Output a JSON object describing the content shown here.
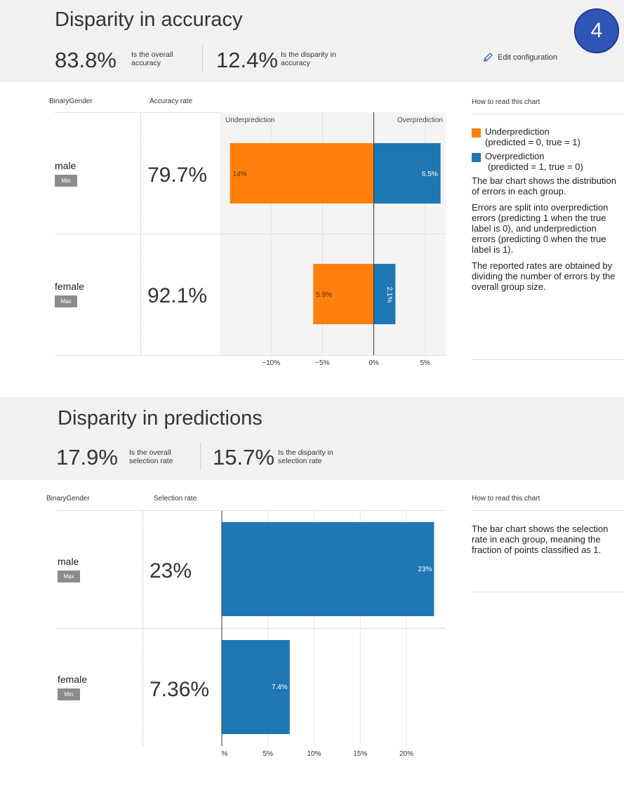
{
  "accuracy_section": {
    "title": "Disparity in accuracy",
    "overall_value": "83.8%",
    "overall_label": "Is the overall accuracy",
    "disparity_value": "12.4%",
    "disparity_label": "Is the disparity in accuracy",
    "edit_label": "Edit configuration",
    "step_badge": "4",
    "col_group": "BinaryGender",
    "col_metric": "Accuracy rate",
    "rows": [
      {
        "name": "male",
        "tag": "Min",
        "rate": "79.7%"
      },
      {
        "name": "female",
        "tag": "Max",
        "rate": "92.1%"
      }
    ],
    "howto_title": "How to read this chart",
    "legend": [
      {
        "label": "Underprediction",
        "detail": "(predicted = 0, true = 1)",
        "color": "#ff7f0e"
      },
      {
        "label": "Overprediction",
        "detail": "(predicted = 1, true = 0)",
        "color": "#1f77b4"
      }
    ],
    "paragraphs": [
      "The bar chart shows the distribution of errors in each group.",
      "Errors are split into overprediction errors (predicting 1 when the true label is 0), and underprediction errors (predicting 0 when the true label is 1).",
      "The reported rates are obtained by dividing the number of errors by the overall group size."
    ]
  },
  "predictions_section": {
    "title": "Disparity in predictions",
    "overall_value": "17.9%",
    "overall_label": "Is the overall selection rate",
    "disparity_value": "15.7%",
    "disparity_label": "Is the disparity in selection rate",
    "col_group": "BinaryGender",
    "col_metric": "Selection rate",
    "rows": [
      {
        "name": "male",
        "tag": "Max",
        "rate": "23%"
      },
      {
        "name": "female",
        "tag": "Min",
        "rate": "7.36%"
      }
    ],
    "howto_title": "How to read this chart",
    "paragraphs": [
      "The bar chart shows the selection rate in each group, meaning the fraction of points classified as 1."
    ]
  },
  "chart_data": [
    {
      "type": "bar",
      "orientation": "horizontal",
      "stacked": "diverging",
      "categories": [
        "male",
        "female"
      ],
      "series": [
        {
          "name": "Underprediction",
          "values": [
            -14,
            -5.9
          ],
          "labels": [
            "14%",
            "5.9%"
          ],
          "color": "#ff7f0e"
        },
        {
          "name": "Overprediction",
          "values": [
            6.5,
            2.1
          ],
          "labels": [
            "6.5%",
            "2.1%"
          ],
          "color": "#1f77b4"
        }
      ],
      "top_labels": [
        "Underprediction",
        "Overprediction"
      ],
      "xlim": [
        -15,
        7
      ],
      "xticks": [
        -10,
        -5,
        0,
        5
      ],
      "xtick_labels": [
        "−10%",
        "−5%",
        "0%",
        "5%"
      ]
    },
    {
      "type": "bar",
      "orientation": "horizontal",
      "categories": [
        "male",
        "female"
      ],
      "series": [
        {
          "name": "Selection rate",
          "values": [
            23,
            7.36
          ],
          "labels": [
            "23%",
            "7.4%"
          ],
          "color": "#1f77b4"
        }
      ],
      "xlim": [
        0,
        23.5
      ],
      "xticks": [
        0,
        5,
        10,
        15,
        20
      ],
      "xtick_labels": [
        "%",
        "5%",
        "10%",
        "15%",
        "20%"
      ]
    }
  ]
}
